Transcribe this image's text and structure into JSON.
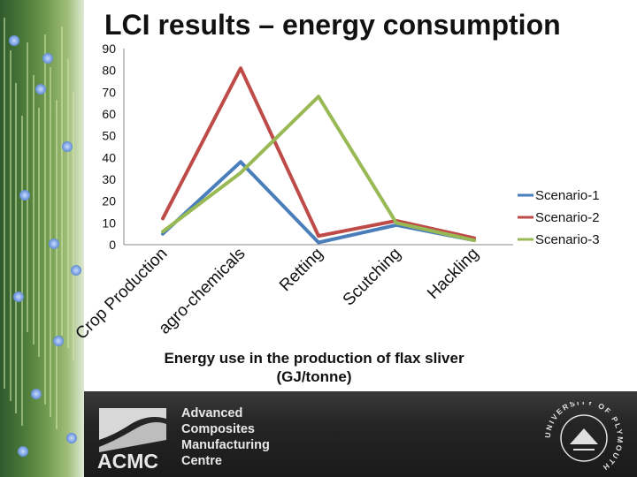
{
  "slide": {
    "title": "LCI results – energy consumption",
    "caption_line1": "Energy use in the production of flax sliver",
    "caption_line2": "(GJ/tonne)",
    "org_lines": [
      "Advanced",
      "Composites",
      "Manufacturing",
      "Centre"
    ],
    "logo_text": "ACMC",
    "seal_text": "UNIVERSITY OF PLYMOUTH"
  },
  "chart_data": {
    "type": "line",
    "title": "",
    "xlabel": "",
    "ylabel": "",
    "categories": [
      "Crop Production",
      "agro-chemicals",
      "Retting",
      "Scutching",
      "Hackling"
    ],
    "ylim": [
      0,
      90
    ],
    "yticks": [
      0,
      10,
      20,
      30,
      40,
      50,
      60,
      70,
      80,
      90
    ],
    "grid": false,
    "legend_position": "right",
    "series": [
      {
        "name": "Scenario-1",
        "color": "#4a7ebb",
        "values": [
          5,
          38,
          1,
          9,
          2
        ]
      },
      {
        "name": "Scenario-2",
        "color": "#be4b48",
        "values": [
          12,
          81,
          4,
          11,
          3
        ]
      },
      {
        "name": "Scenario-3",
        "color": "#98b954",
        "values": [
          6,
          33,
          68,
          10,
          2
        ]
      }
    ]
  }
}
